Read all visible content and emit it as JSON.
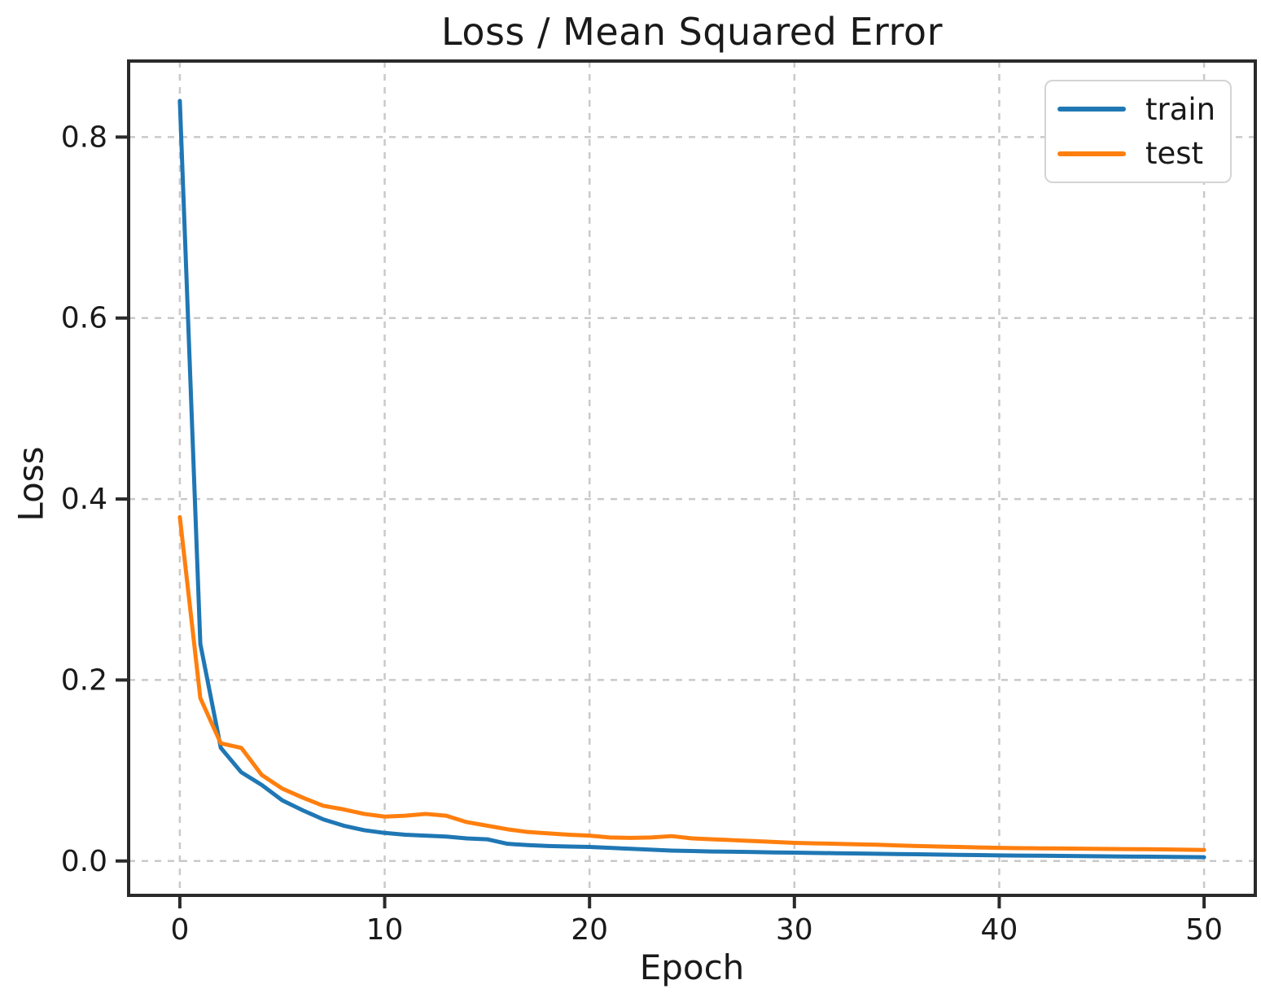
{
  "chart_data": {
    "type": "line",
    "title": "Loss / Mean Squared Error",
    "xlabel": "Epoch",
    "ylabel": "Loss",
    "xlim": [
      -2.5,
      52.5
    ],
    "ylim": [
      -0.038,
      0.884
    ],
    "xticks": [
      0,
      10,
      20,
      30,
      40,
      50
    ],
    "xtick_labels": [
      "0",
      "10",
      "20",
      "30",
      "40",
      "50"
    ],
    "yticks": [
      0.0,
      0.2,
      0.4,
      0.6,
      0.8
    ],
    "ytick_labels": [
      "0.0",
      "0.2",
      "0.4",
      "0.6",
      "0.8"
    ],
    "grid": true,
    "grid_style": "dashed",
    "grid_color": "#c9c9c9",
    "spine_color": "#2a2a2a",
    "legend_position": "upper right",
    "x": [
      0,
      1,
      2,
      3,
      4,
      5,
      6,
      7,
      8,
      9,
      10,
      11,
      12,
      13,
      14,
      15,
      16,
      17,
      18,
      19,
      20,
      21,
      22,
      23,
      24,
      25,
      26,
      27,
      28,
      29,
      30,
      31,
      32,
      33,
      34,
      35,
      36,
      37,
      38,
      39,
      40,
      41,
      42,
      43,
      44,
      45,
      46,
      47,
      48,
      49,
      50
    ],
    "series": [
      {
        "name": "train",
        "color": "#1f77b4",
        "values": [
          0.84,
          0.24,
          0.125,
          0.098,
          0.084,
          0.067,
          0.056,
          0.046,
          0.039,
          0.034,
          0.031,
          0.029,
          0.028,
          0.027,
          0.025,
          0.024,
          0.019,
          0.0175,
          0.0165,
          0.016,
          0.0155,
          0.0145,
          0.0135,
          0.0125,
          0.0115,
          0.011,
          0.0105,
          0.0102,
          0.0099,
          0.0095,
          0.0092,
          0.0089,
          0.0086,
          0.0083,
          0.008,
          0.0077,
          0.0074,
          0.0071,
          0.0068,
          0.0065,
          0.0062,
          0.006,
          0.0058,
          0.0056,
          0.0054,
          0.0052,
          0.005,
          0.0048,
          0.0046,
          0.0044,
          0.0042
        ]
      },
      {
        "name": "test",
        "color": "#ff7f0e",
        "values": [
          0.38,
          0.18,
          0.13,
          0.125,
          0.095,
          0.08,
          0.07,
          0.061,
          0.057,
          0.052,
          0.049,
          0.05,
          0.052,
          0.05,
          0.043,
          0.039,
          0.035,
          0.032,
          0.0305,
          0.029,
          0.028,
          0.026,
          0.0255,
          0.026,
          0.0275,
          0.025,
          0.024,
          0.023,
          0.022,
          0.021,
          0.02,
          0.0195,
          0.019,
          0.0185,
          0.018,
          0.0172,
          0.0165,
          0.016,
          0.0155,
          0.015,
          0.0145,
          0.0142,
          0.014,
          0.0138,
          0.0136,
          0.0134,
          0.0132,
          0.013,
          0.0128,
          0.0125,
          0.0122
        ]
      }
    ]
  }
}
